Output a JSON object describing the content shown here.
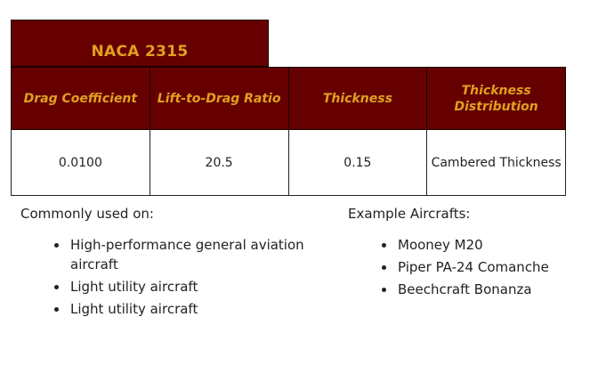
{
  "table": {
    "title": "NACA 2315",
    "headers": [
      "Drag Coefficient",
      "Lift-to-Drag Ratio",
      "Thickness",
      "Thickness Distribution"
    ],
    "row": [
      "0.0100",
      "20.5",
      "0.15",
      "Cambered Thickness"
    ]
  },
  "commonly_used": {
    "heading": "Commonly used on:",
    "items": [
      "High-performance general aviation aircraft",
      "Light utility aircraft",
      "Light utility aircraft"
    ]
  },
  "example_aircrafts": {
    "heading": "Example Aircrafts:",
    "items": [
      "Mooney M20",
      "Piper PA-24 Comanche",
      "Beechcraft Bonanza"
    ]
  },
  "colors": {
    "header_bg": "#660000",
    "header_text": "#e0a020"
  }
}
